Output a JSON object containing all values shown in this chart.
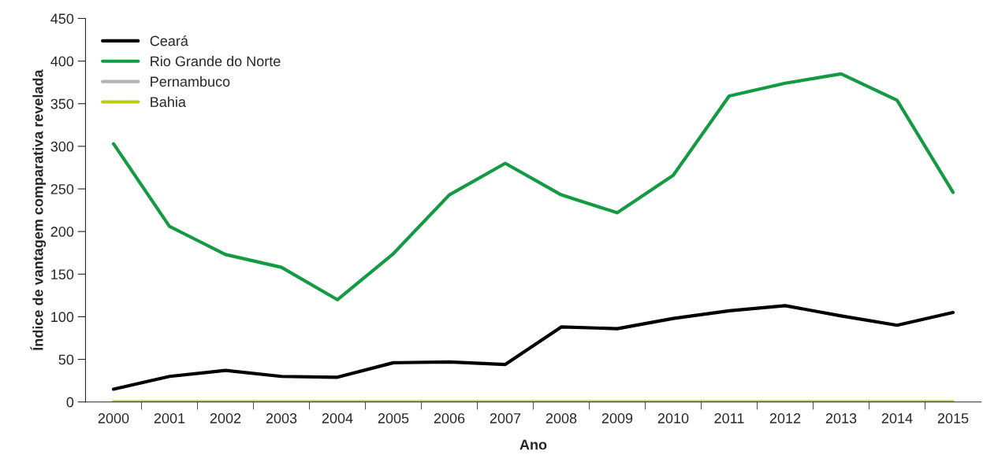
{
  "chart_data": {
    "type": "line",
    "xlabel": "Ano",
    "ylabel": "Índice de vantagem comparativa revelada",
    "categories": [
      "2000",
      "2001",
      "2002",
      "2003",
      "2004",
      "2005",
      "2006",
      "2007",
      "2008",
      "2009",
      "2010",
      "2011",
      "2012",
      "2013",
      "2014",
      "2015"
    ],
    "series": [
      {
        "name": "Ceará",
        "color": "#000000",
        "values": [
          15,
          30,
          37,
          30,
          29,
          46,
          47,
          44,
          88,
          86,
          98,
          107,
          113,
          101,
          90,
          105
        ]
      },
      {
        "name": "Rio Grande do Norte",
        "color": "#139a43",
        "values": [
          303,
          206,
          173,
          158,
          120,
          174,
          243,
          280,
          243,
          222,
          266,
          359,
          374,
          385,
          354,
          246
        ]
      },
      {
        "name": "Pernambuco",
        "color": "#b3b3b3",
        "values": [
          null,
          null,
          null,
          null,
          null,
          null,
          null,
          null,
          null,
          null,
          null,
          null,
          null,
          null,
          null,
          null
        ]
      },
      {
        "name": "Bahia",
        "color": "#b5cc18",
        "values": [
          0,
          0,
          0,
          0,
          0,
          0,
          0,
          0,
          0,
          0,
          0,
          0,
          0,
          0,
          0,
          0
        ]
      }
    ],
    "ylim": [
      0,
      450
    ],
    "yticks": [
      0,
      50,
      100,
      150,
      200,
      250,
      300,
      350,
      400,
      450
    ],
    "grid": false,
    "legend": "top left",
    "marker": "none",
    "line_style": "solid"
  }
}
